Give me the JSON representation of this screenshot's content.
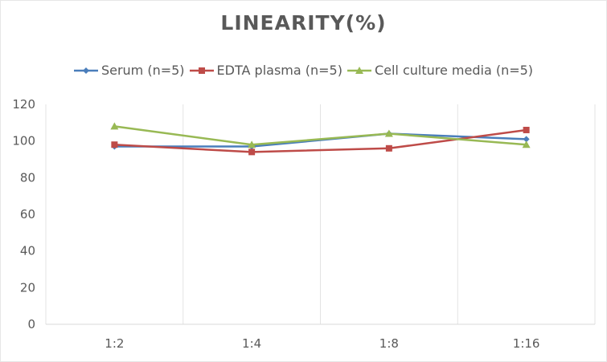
{
  "chart_data": {
    "type": "line",
    "title": "LINEARITY(%)",
    "xlabel": "",
    "ylabel": "",
    "categories": [
      "1:2",
      "1:4",
      "1:8",
      "1:16"
    ],
    "ylim": [
      0,
      120
    ],
    "yticks": [
      0,
      20,
      40,
      60,
      80,
      100,
      120
    ],
    "grid": "vertical",
    "legend_position": "top",
    "series": [
      {
        "name": "Serum (n=5)",
        "color": "#4a7ebb",
        "marker": "diamond",
        "values": [
          97,
          97,
          104,
          101
        ]
      },
      {
        "name": "EDTA plasma (n=5)",
        "color": "#be4b48",
        "marker": "square",
        "values": [
          98,
          94,
          96,
          106
        ]
      },
      {
        "name": "Cell culture media (n=5)",
        "color": "#98b954",
        "marker": "triangle",
        "values": [
          108,
          98,
          104,
          98
        ]
      }
    ]
  }
}
